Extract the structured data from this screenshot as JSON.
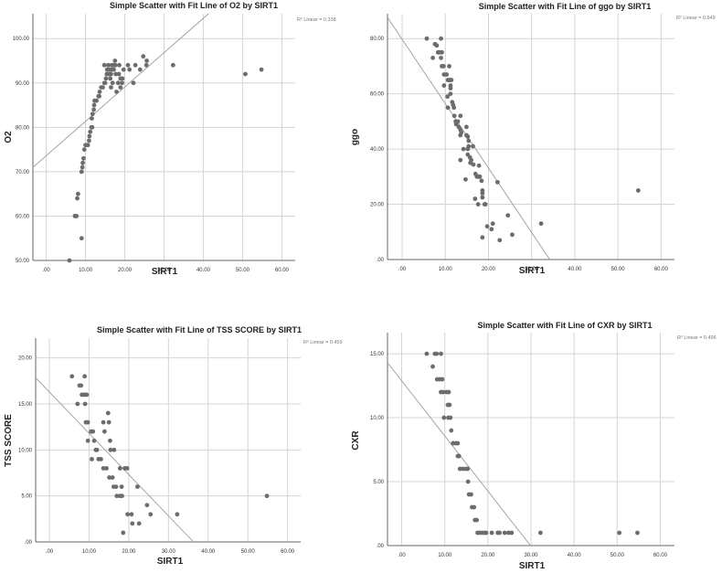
{
  "chart_data": [
    {
      "type": "scatter",
      "title": "Simple Scatter with Fit Line of O2 by SIRT1",
      "xlabel": "SIRT1",
      "ylabel": "O2",
      "r2_label": "R² Linear = 0.338",
      "xlim": [
        -3.4,
        63.4
      ],
      "ylim": [
        50,
        105.6
      ],
      "xticks": [
        0,
        10,
        20,
        30,
        40,
        50,
        60
      ],
      "xtick_labels": [
        ".00",
        "10.00",
        "20.00",
        "30.00",
        "40.00",
        "50.00",
        "60.00"
      ],
      "yticks": [
        50,
        60,
        70,
        80,
        90,
        100
      ],
      "ytick_labels": [
        "50.00",
        "60.00",
        "70.00",
        "80.00",
        "90.00",
        "100.00"
      ],
      "grid": true,
      "fit": {
        "slope": 0.774,
        "intercept": 73.6
      },
      "points": [
        [
          5.9,
          50
        ],
        [
          9.0,
          55
        ],
        [
          7.3,
          60
        ],
        [
          7.7,
          60
        ],
        [
          7.9,
          64
        ],
        [
          8.1,
          65
        ],
        [
          9.0,
          70
        ],
        [
          9.2,
          71
        ],
        [
          9.3,
          72
        ],
        [
          9.5,
          73
        ],
        [
          9.7,
          75
        ],
        [
          10.0,
          76
        ],
        [
          10.6,
          76
        ],
        [
          10.9,
          77
        ],
        [
          11.0,
          78
        ],
        [
          11.2,
          79
        ],
        [
          11.5,
          80
        ],
        [
          11.7,
          80
        ],
        [
          11.6,
          82
        ],
        [
          11.8,
          83
        ],
        [
          12.1,
          84
        ],
        [
          12.2,
          85
        ],
        [
          12.3,
          86
        ],
        [
          12.8,
          86
        ],
        [
          13.3,
          87
        ],
        [
          13.5,
          87
        ],
        [
          13.6,
          88
        ],
        [
          14.0,
          89
        ],
        [
          14.4,
          89
        ],
        [
          15.0,
          90
        ],
        [
          15.2,
          91
        ],
        [
          14.8,
          94
        ],
        [
          15.8,
          94
        ],
        [
          16.7,
          94
        ],
        [
          17.1,
          94
        ],
        [
          17.6,
          94
        ],
        [
          18.6,
          94
        ],
        [
          17.5,
          95
        ],
        [
          15.5,
          93
        ],
        [
          16.1,
          93
        ],
        [
          16.7,
          93
        ],
        [
          17.2,
          93
        ],
        [
          19.7,
          93
        ],
        [
          15.4,
          92
        ],
        [
          16.0,
          92
        ],
        [
          16.5,
          92
        ],
        [
          17.7,
          92
        ],
        [
          18.5,
          92
        ],
        [
          16.3,
          91
        ],
        [
          18.9,
          91
        ],
        [
          19.4,
          91
        ],
        [
          14.8,
          90
        ],
        [
          16.9,
          90
        ],
        [
          18.3,
          90
        ],
        [
          19.3,
          90
        ],
        [
          22.2,
          90
        ],
        [
          16.5,
          89
        ],
        [
          18.9,
          89
        ],
        [
          17.9,
          88
        ],
        [
          20.8,
          94
        ],
        [
          21.2,
          93
        ],
        [
          22.7,
          94
        ],
        [
          23.9,
          93
        ],
        [
          24.7,
          96
        ],
        [
          25.6,
          95
        ],
        [
          25.5,
          94
        ],
        [
          32.3,
          94
        ],
        [
          50.7,
          92
        ],
        [
          54.8,
          93
        ]
      ]
    },
    {
      "type": "scatter",
      "title": "Simple Scatter with Fit Line of ggo by SIRT1",
      "xlabel": "SIRT1",
      "ylabel": "ggo",
      "r2_label": "R² Linear = 0.549",
      "xlim": [
        -3.4,
        63.1
      ],
      "ylim": [
        0,
        89
      ],
      "xticks": [
        0,
        10,
        20,
        30,
        40,
        50,
        60
      ],
      "xtick_labels": [
        ".00",
        "10.00",
        "20.00",
        "30.00",
        "40.00",
        "50.00",
        "60.00"
      ],
      "yticks": [
        0,
        20,
        40,
        60,
        80
      ],
      "ytick_labels": [
        ".00",
        "20.00",
        "40.00",
        "60.00",
        "80.00"
      ],
      "grid": true,
      "fit": {
        "slope": -2.33,
        "intercept": 79.7
      },
      "points": [
        [
          5.7,
          80
        ],
        [
          9.0,
          80
        ],
        [
          7.1,
          73
        ],
        [
          7.6,
          78
        ],
        [
          8.0,
          77.5
        ],
        [
          8.3,
          75
        ],
        [
          8.7,
          75
        ],
        [
          9.2,
          75
        ],
        [
          9.0,
          73
        ],
        [
          9.2,
          70
        ],
        [
          9.6,
          70
        ],
        [
          10.9,
          70
        ],
        [
          9.7,
          67
        ],
        [
          10.3,
          67
        ],
        [
          9.7,
          63
        ],
        [
          10.6,
          65
        ],
        [
          11.0,
          65
        ],
        [
          11.4,
          65
        ],
        [
          11.2,
          63
        ],
        [
          11.2,
          62
        ],
        [
          10.5,
          59
        ],
        [
          11.2,
          60
        ],
        [
          10.6,
          55
        ],
        [
          11.6,
          57
        ],
        [
          11.8,
          56
        ],
        [
          12.0,
          55
        ],
        [
          12.1,
          52
        ],
        [
          13.5,
          52
        ],
        [
          12.4,
          50
        ],
        [
          12.9,
          50
        ],
        [
          12.5,
          49
        ],
        [
          13.1,
          48
        ],
        [
          13.5,
          47
        ],
        [
          13.7,
          46
        ],
        [
          13.5,
          45
        ],
        [
          14.9,
          48
        ],
        [
          14.9,
          45
        ],
        [
          15.2,
          44.5
        ],
        [
          15.4,
          43
        ],
        [
          14.2,
          40
        ],
        [
          15.2,
          40
        ],
        [
          15.4,
          41
        ],
        [
          16.4,
          41
        ],
        [
          13.5,
          36
        ],
        [
          15.2,
          38
        ],
        [
          15.7,
          37
        ],
        [
          16.0,
          36
        ],
        [
          15.8,
          35
        ],
        [
          16.5,
          34.4
        ],
        [
          17.8,
          34
        ],
        [
          14.7,
          29
        ],
        [
          17.0,
          31
        ],
        [
          17.3,
          30
        ],
        [
          17.7,
          30
        ],
        [
          18.0,
          30
        ],
        [
          18.4,
          28.5
        ],
        [
          18.6,
          25
        ],
        [
          18.6,
          24
        ],
        [
          18.6,
          22.5
        ],
        [
          16.9,
          22
        ],
        [
          17.6,
          20
        ],
        [
          19.1,
          20
        ],
        [
          19.3,
          20
        ],
        [
          22.1,
          28
        ],
        [
          18.6,
          8
        ],
        [
          19.7,
          12
        ],
        [
          20.7,
          11
        ],
        [
          21.0,
          13
        ],
        [
          22.6,
          7
        ],
        [
          24.5,
          16
        ],
        [
          25.5,
          9
        ],
        [
          32.2,
          13
        ],
        [
          54.7,
          25
        ]
      ]
    },
    {
      "type": "scatter",
      "title": "Simple Scatter with Fit Line of TSS SCORE by SIRT1",
      "xlabel": "SIRT1",
      "ylabel": "TSS SCORE",
      "r2_label": "R² Linear = 0.459",
      "xlim": [
        -3.45,
        63.3
      ],
      "ylim": [
        0,
        22.15
      ],
      "xticks": [
        0,
        10,
        20,
        30,
        40,
        50,
        60
      ],
      "xtick_labels": [
        ".00",
        "10.00",
        "20.00",
        "30.00",
        "40.00",
        "50.00",
        "60.00"
      ],
      "yticks": [
        0,
        5,
        10,
        15,
        20
      ],
      "ytick_labels": [
        ".00",
        "5.00",
        "10.00",
        "15.00",
        "20.00"
      ],
      "grid": true,
      "fit": {
        "slope": -0.449,
        "intercept": 16.3
      },
      "points": [
        [
          5.7,
          18
        ],
        [
          8.9,
          18
        ],
        [
          7.6,
          17
        ],
        [
          8.0,
          17
        ],
        [
          7.1,
          15
        ],
        [
          9.0,
          15
        ],
        [
          8.2,
          16
        ],
        [
          8.8,
          16
        ],
        [
          9.4,
          16
        ],
        [
          9.2,
          13
        ],
        [
          9.7,
          13
        ],
        [
          9.7,
          11
        ],
        [
          10.5,
          12
        ],
        [
          11.0,
          12
        ],
        [
          11.3,
          11
        ],
        [
          10.7,
          9
        ],
        [
          11.7,
          10
        ],
        [
          12.0,
          10
        ],
        [
          12.4,
          9
        ],
        [
          13.0,
          9
        ],
        [
          13.6,
          8
        ],
        [
          14.4,
          8
        ],
        [
          13.6,
          13
        ],
        [
          13.9,
          12
        ],
        [
          14.8,
          14
        ],
        [
          15.0,
          13
        ],
        [
          15.3,
          11
        ],
        [
          15.4,
          10
        ],
        [
          16.3,
          10
        ],
        [
          15.1,
          7
        ],
        [
          15.9,
          7
        ],
        [
          16.2,
          6
        ],
        [
          16.8,
          6
        ],
        [
          17.0,
          5
        ],
        [
          17.8,
          5
        ],
        [
          18.3,
          5
        ],
        [
          17.8,
          8
        ],
        [
          19.0,
          8
        ],
        [
          19.6,
          8
        ],
        [
          18.2,
          6
        ],
        [
          18.6,
          1
        ],
        [
          19.7,
          3
        ],
        [
          20.7,
          3
        ],
        [
          20.9,
          2
        ],
        [
          22.2,
          6
        ],
        [
          22.6,
          2
        ],
        [
          24.6,
          4
        ],
        [
          25.5,
          3
        ],
        [
          32.2,
          3
        ],
        [
          54.8,
          5
        ]
      ]
    },
    {
      "type": "scatter",
      "title": "Simple Scatter with Fit Line of CXR by SIRT1",
      "xlabel": "SIRT1",
      "ylabel": "CXR",
      "r2_label": "R² Linear = 0.496",
      "xlim": [
        -3.3,
        63.3
      ],
      "ylim": [
        0,
        16.65
      ],
      "xticks": [
        0,
        10,
        20,
        30,
        40,
        50,
        60
      ],
      "xtick_labels": [
        ".00",
        "10.00",
        "20.00",
        "30.00",
        "40.00",
        "50.00",
        "60.00"
      ],
      "yticks": [
        0,
        5,
        10,
        15
      ],
      "ytick_labels": [
        ".00",
        "5.00",
        "10.00",
        "15.00"
      ],
      "grid": true,
      "fit": {
        "slope": -0.431,
        "intercept": 12.88
      },
      "points": [
        [
          5.8,
          15
        ],
        [
          7.7,
          15
        ],
        [
          8.1,
          15
        ],
        [
          9.1,
          15
        ],
        [
          7.2,
          14
        ],
        [
          8.2,
          13
        ],
        [
          8.8,
          13
        ],
        [
          9.4,
          13
        ],
        [
          9.1,
          12
        ],
        [
          9.6,
          12
        ],
        [
          10.4,
          12
        ],
        [
          10.9,
          12
        ],
        [
          10.7,
          11
        ],
        [
          11.1,
          11
        ],
        [
          9.8,
          10
        ],
        [
          10.8,
          10
        ],
        [
          11.3,
          10
        ],
        [
          11.5,
          9
        ],
        [
          11.9,
          8
        ],
        [
          12.5,
          8
        ],
        [
          13.0,
          8
        ],
        [
          13.0,
          7
        ],
        [
          13.3,
          7
        ],
        [
          13.5,
          6
        ],
        [
          14.2,
          6
        ],
        [
          14.9,
          6
        ],
        [
          15.3,
          6
        ],
        [
          15.4,
          5
        ],
        [
          15.6,
          4
        ],
        [
          16.1,
          4
        ],
        [
          16.3,
          3
        ],
        [
          16.8,
          3
        ],
        [
          17.0,
          2
        ],
        [
          17.4,
          2
        ],
        [
          17.6,
          1
        ],
        [
          18.1,
          1
        ],
        [
          18.7,
          1
        ],
        [
          19.2,
          1
        ],
        [
          19.6,
          1
        ],
        [
          20.9,
          1
        ],
        [
          22.3,
          1
        ],
        [
          22.7,
          1
        ],
        [
          23.9,
          1
        ],
        [
          24.8,
          1
        ],
        [
          25.5,
          1
        ],
        [
          32.2,
          1
        ],
        [
          50.5,
          1
        ],
        [
          54.7,
          1
        ]
      ]
    }
  ]
}
